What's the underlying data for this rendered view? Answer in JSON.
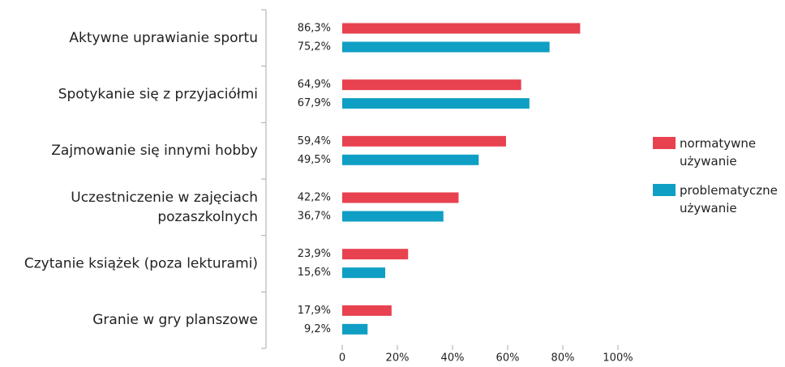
{
  "chart_data": {
    "type": "bar",
    "orientation": "horizontal",
    "categories": [
      "Aktywne uprawianie sportu",
      "Spotykanie się z przyjaciółmi",
      "Zajmowanie się innymi hobby",
      "Uczestniczenie w zajęciach\npozaszkolnych",
      "Czytanie książek (poza lekturami)",
      "Granie w gry planszowe"
    ],
    "series": [
      {
        "name": "normatywne\nużywanie",
        "color": "#e8414f",
        "values": [
          86.3,
          64.9,
          59.4,
          42.2,
          23.9,
          17.9
        ],
        "value_labels": [
          "86,3%",
          "64,9%",
          "59,4%",
          "42,2%",
          "23,9%",
          "17,9%"
        ]
      },
      {
        "name": "problematyczne\nużywanie",
        "color": "#0f9fc4",
        "values": [
          75.2,
          67.9,
          49.5,
          36.7,
          15.6,
          9.2
        ],
        "value_labels": [
          "75,2%",
          "67,9%",
          "49,5%",
          "36,7%",
          "15,6%",
          "9,2%"
        ]
      }
    ],
    "xlim": [
      0,
      100
    ],
    "xticks": [
      0,
      {
        "value": 20,
        "label": "20%"
      },
      {
        "value": 40,
        "label": "40%"
      },
      {
        "value": 60,
        "label": "60%"
      },
      {
        "value": 80,
        "label": "80%"
      },
      {
        "value": 100,
        "label": "100%"
      }
    ],
    "legend": "right"
  }
}
